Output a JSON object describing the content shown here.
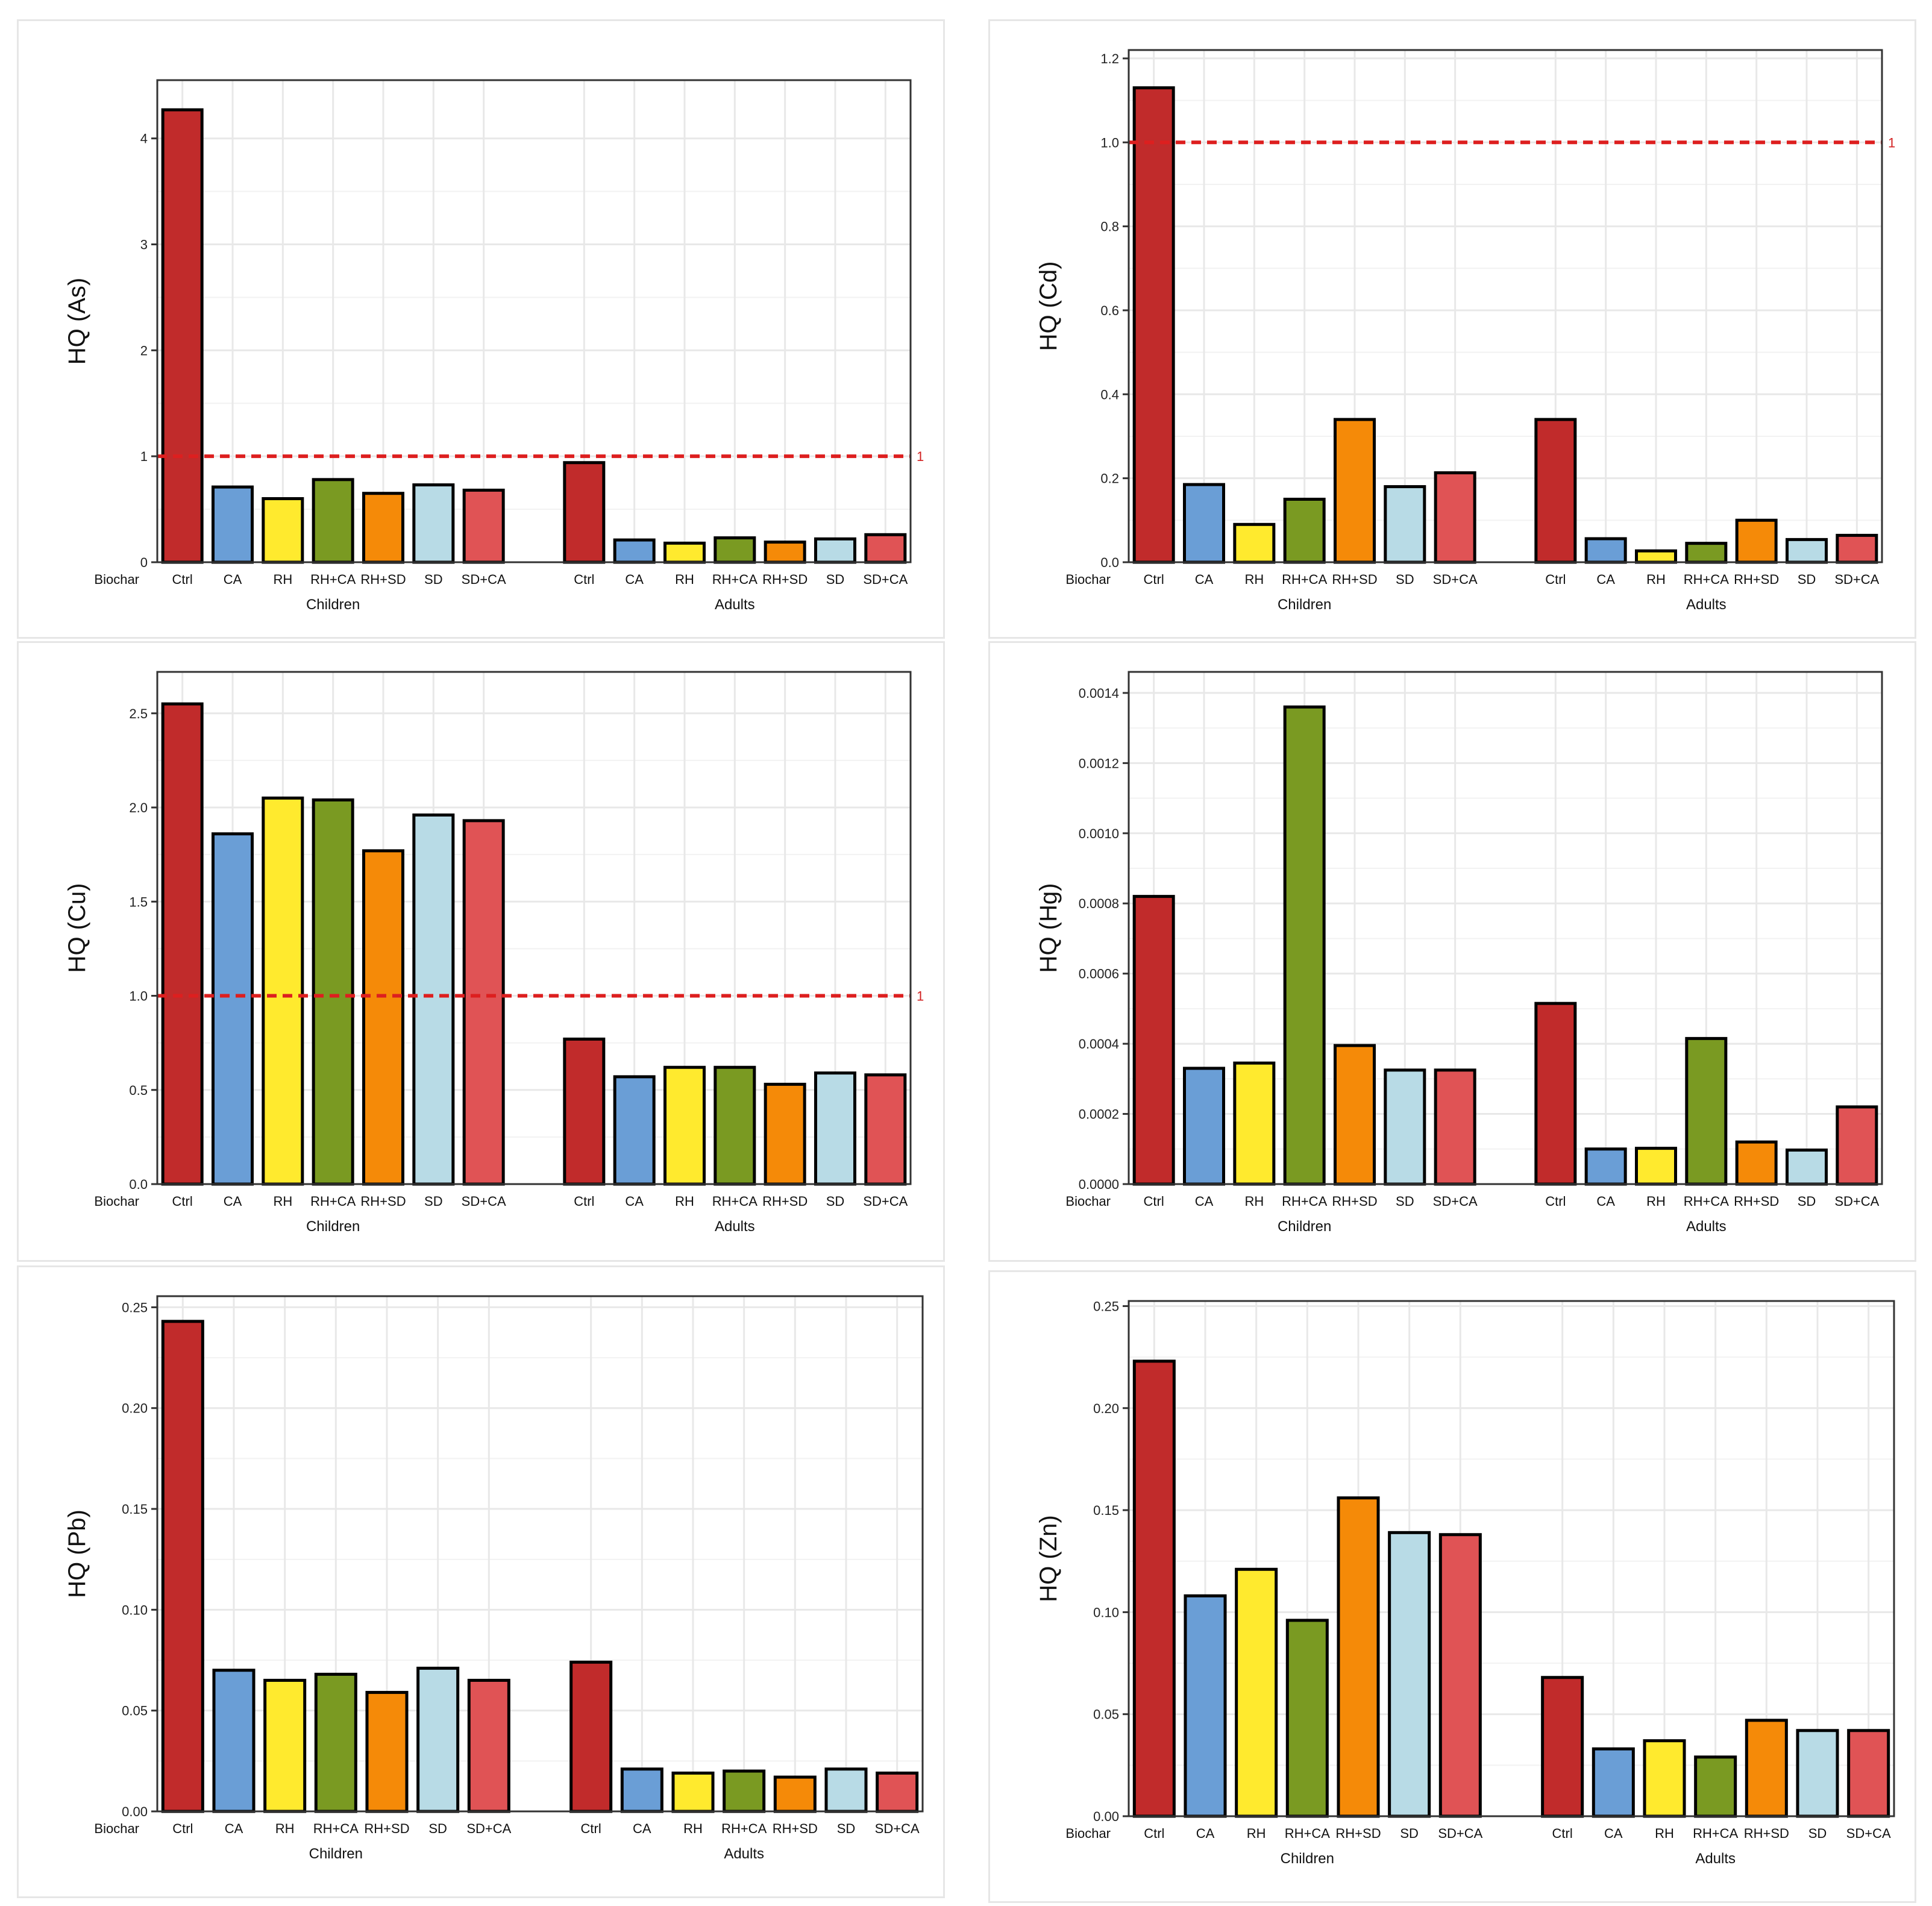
{
  "x_axis_label": "Biochar",
  "colors": {
    "Ctrl": "#c12b2b",
    "CA": "#6a9ed6",
    "RH": "#ffea2e",
    "RH+CA": "#7a9a22",
    "RH+SD": "#f58a08",
    "SD": "#b8dbe6",
    "SD+CA": "#e05355",
    "reference_line": "#dd1f1f",
    "grid": "#e8e8e8"
  },
  "chart_data": [
    {
      "type": "bar",
      "ylabel": "HQ (As)",
      "ylim": [
        0,
        4.55
      ],
      "yticks": [
        "0",
        "1",
        "2",
        "3",
        "4"
      ],
      "ytick_values": [
        0,
        1,
        2,
        3,
        4
      ],
      "reference_line": 1,
      "reference_label": "1",
      "categories": [
        "Ctrl",
        "CA",
        "RH",
        "RH+CA",
        "RH+SD",
        "SD",
        "SD+CA"
      ],
      "groups": [
        {
          "name": "Children",
          "values": [
            4.27,
            0.71,
            0.6,
            0.78,
            0.65,
            0.73,
            0.68
          ]
        },
        {
          "name": "Adults",
          "values": [
            0.94,
            0.21,
            0.18,
            0.23,
            0.19,
            0.22,
            0.26
          ]
        }
      ]
    },
    {
      "type": "bar",
      "ylabel": "HQ (Cd)",
      "ylim": [
        0,
        1.22
      ],
      "yticks": [
        "0.0",
        "0.2",
        "0.4",
        "0.6",
        "0.8",
        "1.0",
        "1.2"
      ],
      "ytick_values": [
        0,
        0.2,
        0.4,
        0.6,
        0.8,
        1.0,
        1.2
      ],
      "reference_line": 1,
      "reference_label": "1",
      "categories": [
        "Ctrl",
        "CA",
        "RH",
        "RH+CA",
        "RH+SD",
        "SD",
        "SD+CA"
      ],
      "groups": [
        {
          "name": "Children",
          "values": [
            1.13,
            0.185,
            0.09,
            0.15,
            0.34,
            0.18,
            0.213
          ]
        },
        {
          "name": "Adults",
          "values": [
            0.34,
            0.056,
            0.027,
            0.045,
            0.1,
            0.054,
            0.064
          ]
        }
      ]
    },
    {
      "type": "bar",
      "ylabel": "HQ (Cu)",
      "ylim": [
        0,
        2.72
      ],
      "yticks": [
        "0.0",
        "0.5",
        "1.0",
        "1.5",
        "2.0",
        "2.5"
      ],
      "ytick_values": [
        0,
        0.5,
        1.0,
        1.5,
        2.0,
        2.5
      ],
      "reference_line": 1,
      "reference_label": "1",
      "categories": [
        "Ctrl",
        "CA",
        "RH",
        "RH+CA",
        "RH+SD",
        "SD",
        "SD+CA"
      ],
      "groups": [
        {
          "name": "Children",
          "values": [
            2.55,
            1.86,
            2.05,
            2.04,
            1.77,
            1.96,
            1.93
          ]
        },
        {
          "name": "Adults",
          "values": [
            0.77,
            0.57,
            0.62,
            0.62,
            0.53,
            0.59,
            0.58
          ]
        }
      ]
    },
    {
      "type": "bar",
      "ylabel": "HQ (Hg)",
      "ylim": [
        0,
        0.00146
      ],
      "yticks": [
        "0.0000",
        "0.0002",
        "0.0004",
        "0.0006",
        "0.0008",
        "0.0010",
        "0.0012",
        "0.0014"
      ],
      "ytick_values": [
        0,
        0.0002,
        0.0004,
        0.0006,
        0.0008,
        0.001,
        0.0012,
        0.0014
      ],
      "categories": [
        "Ctrl",
        "CA",
        "RH",
        "RH+CA",
        "RH+SD",
        "SD",
        "SD+CA"
      ],
      "groups": [
        {
          "name": "Children",
          "values": [
            0.00082,
            0.00033,
            0.000345,
            0.00136,
            0.000395,
            0.000325,
            0.000325
          ]
        },
        {
          "name": "Adults",
          "values": [
            0.000515,
            0.0001,
            0.000102,
            0.000415,
            0.00012,
            9.7e-05,
            0.00022
          ]
        }
      ]
    },
    {
      "type": "bar",
      "ylabel": "HQ (Pb)",
      "ylim": [
        0,
        0.2555
      ],
      "yticks": [
        "0.00",
        "0.05",
        "0.10",
        "0.15",
        "0.20",
        "0.25"
      ],
      "ytick_values": [
        0,
        0.05,
        0.1,
        0.15,
        0.2,
        0.25
      ],
      "categories": [
        "Ctrl",
        "CA",
        "RH",
        "RH+CA",
        "RH+SD",
        "SD",
        "SD+CA"
      ],
      "groups": [
        {
          "name": "Children",
          "values": [
            0.243,
            0.07,
            0.065,
            0.068,
            0.059,
            0.071,
            0.065
          ]
        },
        {
          "name": "Adults",
          "values": [
            0.074,
            0.021,
            0.019,
            0.02,
            0.017,
            0.021,
            0.019
          ]
        }
      ]
    },
    {
      "type": "bar",
      "ylabel": "HQ (Zn)",
      "ylim": [
        0,
        0.2525
      ],
      "yticks": [
        "0.00",
        "0.05",
        "0.10",
        "0.15",
        "0.20",
        "0.25"
      ],
      "ytick_values": [
        0,
        0.05,
        0.1,
        0.15,
        0.2,
        0.25
      ],
      "categories": [
        "Ctrl",
        "CA",
        "RH",
        "RH+CA",
        "RH+SD",
        "SD",
        "SD+CA"
      ],
      "groups": [
        {
          "name": "Children",
          "values": [
            0.223,
            0.108,
            0.121,
            0.096,
            0.156,
            0.139,
            0.138
          ]
        },
        {
          "name": "Adults",
          "values": [
            0.068,
            0.033,
            0.037,
            0.029,
            0.047,
            0.042,
            0.042
          ]
        }
      ]
    }
  ]
}
